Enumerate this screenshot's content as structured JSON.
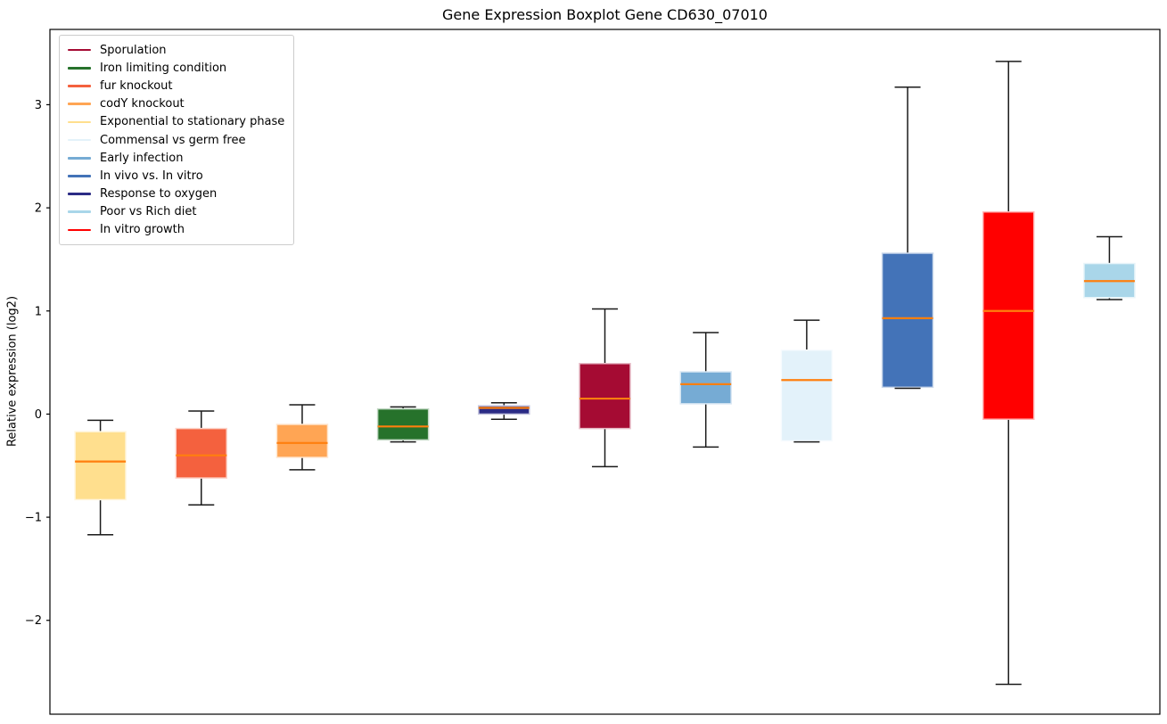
{
  "figure": {
    "title": "Gene Expression Boxplot Gene CD630_07010",
    "ylabel": "Relative expression (log2)",
    "xlabel": ""
  },
  "chart_data": {
    "type": "boxplot",
    "title": "Gene Expression Boxplot Gene CD630_07010",
    "xlabel": "",
    "ylabel": "Relative expression (log2)",
    "ylim": [
      -2.91,
      3.73
    ],
    "yticks": [
      3,
      2,
      1,
      0,
      -1,
      -2
    ],
    "xticks": [],
    "grid": false,
    "median_color": "#ff7f0e",
    "whisker_color": "#1a1a1a",
    "legend": {
      "position": "upper-left",
      "entries": [
        {
          "label": "Sporulation",
          "color": "#a50b33"
        },
        {
          "label": "Iron limiting condition",
          "color": "#26722b"
        },
        {
          "label": "fur knockout",
          "color": "#f4613e"
        },
        {
          "label": "codY knockout",
          "color": "#ffa554"
        },
        {
          "label": "Exponential to stationary phase",
          "color": "#ffdf8e"
        },
        {
          "label": "Commensal vs germ free",
          "color": "#e3f2fa"
        },
        {
          "label": "Early infection",
          "color": "#76abd4"
        },
        {
          "label": "In vivo vs. In vitro",
          "color": "#4373b8"
        },
        {
          "label": "Response to oxygen",
          "color": "#2b2b85"
        },
        {
          "label": "Poor vs Rich diet",
          "color": "#a9d6e9"
        },
        {
          "label": "In vitro growth",
          "color": "#ff0000"
        }
      ]
    },
    "series": [
      {
        "name": "Exponential to stationary phase",
        "color": "#ffdf8e",
        "whisker_low": -1.17,
        "q1": -0.83,
        "median": -0.46,
        "q3": -0.17,
        "whisker_high": -0.06
      },
      {
        "name": "fur knockout",
        "color": "#f4613e",
        "whisker_low": -0.88,
        "q1": -0.62,
        "median": -0.4,
        "q3": -0.14,
        "whisker_high": 0.03
      },
      {
        "name": "codY knockout",
        "color": "#ffa554",
        "whisker_low": -0.54,
        "q1": -0.42,
        "median": -0.28,
        "q3": -0.1,
        "whisker_high": 0.09
      },
      {
        "name": "Iron limiting condition",
        "color": "#26722b",
        "whisker_low": -0.27,
        "q1": -0.25,
        "median": -0.12,
        "q3": 0.05,
        "whisker_high": 0.07
      },
      {
        "name": "Response to oxygen",
        "color": "#2b2b85",
        "whisker_low": -0.05,
        "q1": 0.0,
        "median": 0.06,
        "q3": 0.08,
        "whisker_high": 0.11
      },
      {
        "name": "Sporulation",
        "color": "#a50b33",
        "whisker_low": -0.51,
        "q1": -0.14,
        "median": 0.15,
        "q3": 0.49,
        "whisker_high": 1.02
      },
      {
        "name": "Early infection",
        "color": "#76abd4",
        "whisker_low": -0.32,
        "q1": 0.1,
        "median": 0.29,
        "q3": 0.41,
        "whisker_high": 0.79
      },
      {
        "name": "Commensal vs germ free",
        "color": "#e3f2fa",
        "whisker_low": -0.27,
        "q1": -0.26,
        "median": 0.33,
        "q3": 0.62,
        "whisker_high": 0.91
      },
      {
        "name": "In vivo vs. In vitro",
        "color": "#4373b8",
        "whisker_low": 0.25,
        "q1": 0.26,
        "median": 0.93,
        "q3": 1.56,
        "whisker_high": 3.17
      },
      {
        "name": "In vitro growth",
        "color": "#ff0000",
        "whisker_low": -2.62,
        "q1": -0.05,
        "median": 1.0,
        "q3": 1.96,
        "whisker_high": 3.42
      },
      {
        "name": "Poor vs Rich diet",
        "color": "#a9d6e9",
        "whisker_low": 1.11,
        "q1": 1.13,
        "median": 1.29,
        "q3": 1.46,
        "whisker_high": 1.72
      }
    ]
  }
}
